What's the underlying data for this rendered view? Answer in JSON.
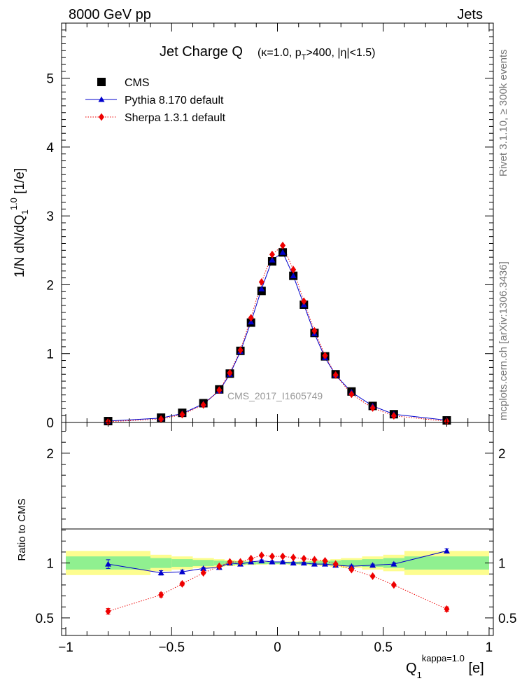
{
  "header": {
    "left": "8000 GeV pp",
    "right": "Jets"
  },
  "side_labels": {
    "rivet": "Rivet 3.1.10, ≥ 300k events",
    "mcplots": "mcplots.cern.ch [arXiv:1306.3436]"
  },
  "chart_data": [
    {
      "type": "scatter",
      "title": "Jet Charge Q",
      "title_detail": "(κ=1.0, p_T>400, |η|<1.5)",
      "watermark": "CMS_2017_I1605749",
      "ylabel": "1/N dN/dQ_1^1.0 [1/e]",
      "xlim": [
        -1.02,
        1.02
      ],
      "ylim": [
        0,
        5.8
      ],
      "y_ticks": [
        0,
        1,
        2,
        3,
        4,
        5
      ],
      "legend_placement": "top-left",
      "x": [
        -0.8,
        -0.55,
        -0.45,
        -0.35,
        -0.275,
        -0.225,
        -0.175,
        -0.125,
        -0.075,
        -0.025,
        0.025,
        0.075,
        0.125,
        0.175,
        0.225,
        0.275,
        0.35,
        0.45,
        0.55,
        0.8
      ],
      "series": [
        {
          "name": "CMS",
          "marker": "square",
          "color": "#000000",
          "values": [
            0.02,
            0.07,
            0.14,
            0.28,
            0.48,
            0.71,
            1.04,
            1.45,
            1.91,
            2.34,
            2.47,
            2.13,
            1.71,
            1.3,
            0.96,
            0.7,
            0.45,
            0.24,
            0.12,
            0.03
          ]
        },
        {
          "name": "Pythia 8.170 default",
          "marker": "triangle",
          "color": "#0000cc",
          "line": "solid",
          "values": [
            0.02,
            0.064,
            0.13,
            0.27,
            0.46,
            0.7,
            1.03,
            1.46,
            1.94,
            2.36,
            2.47,
            2.13,
            1.71,
            1.29,
            0.94,
            0.69,
            0.44,
            0.24,
            0.12,
            0.033
          ]
        },
        {
          "name": "Sherpa 1.3.1 default",
          "marker": "diamond",
          "color": "#ee0000",
          "line": "dotted",
          "values": [
            0.011,
            0.05,
            0.115,
            0.255,
            0.47,
            0.72,
            1.05,
            1.52,
            2.04,
            2.44,
            2.57,
            2.22,
            1.76,
            1.33,
            0.97,
            0.69,
            0.41,
            0.21,
            0.097,
            0.017
          ]
        }
      ]
    },
    {
      "type": "scatter",
      "ylabel": "Ratio to CMS",
      "xlabel": "Q_1^kappa=1.0 [e]",
      "xlim": [
        -1.02,
        1.02
      ],
      "ylim": [
        0.34,
        2.28
      ],
      "y_ticks": [
        0.5,
        1,
        2
      ],
      "x_ticks": [
        -1,
        -0.5,
        0,
        0.5,
        1
      ],
      "x_tick_labels": [
        "−1",
        "−0.5",
        "0",
        "0.5",
        "1"
      ],
      "x": [
        -0.8,
        -0.55,
        -0.45,
        -0.35,
        -0.275,
        -0.225,
        -0.175,
        -0.125,
        -0.075,
        -0.025,
        0.025,
        0.075,
        0.125,
        0.175,
        0.225,
        0.275,
        0.35,
        0.45,
        0.55,
        0.8
      ],
      "bands": {
        "edges": [
          -1.0,
          -0.6,
          -0.5,
          -0.4,
          -0.3,
          -0.25,
          -0.2,
          -0.15,
          -0.1,
          -0.05,
          0.0,
          0.05,
          0.1,
          0.15,
          0.2,
          0.25,
          0.3,
          0.4,
          0.5,
          0.6,
          1.0
        ],
        "inner": [
          0.06,
          0.045,
          0.035,
          0.028,
          0.022,
          0.018,
          0.015,
          0.012,
          0.01,
          0.009,
          0.009,
          0.01,
          0.012,
          0.015,
          0.018,
          0.022,
          0.028,
          0.035,
          0.045,
          0.06
        ],
        "outer": [
          0.11,
          0.075,
          0.06,
          0.045,
          0.035,
          0.028,
          0.022,
          0.018,
          0.015,
          0.013,
          0.013,
          0.015,
          0.018,
          0.022,
          0.028,
          0.035,
          0.045,
          0.06,
          0.075,
          0.11
        ],
        "inner_color": "#90f090",
        "outer_color": "#fdfd8f"
      },
      "series": [
        {
          "name": "Pythia 8.170 default",
          "marker": "triangle",
          "color": "#0000cc",
          "line": "solid",
          "values": [
            0.99,
            0.91,
            0.92,
            0.95,
            0.96,
            1.0,
            0.99,
            1.01,
            1.02,
            1.01,
            1.01,
            1.0,
            1.0,
            0.99,
            0.99,
            0.98,
            0.97,
            0.98,
            0.99,
            1.11
          ],
          "errors": [
            0.04,
            0.02,
            0.015,
            0.01,
            0.01,
            0.01,
            0.008,
            0.008,
            0.008,
            0.008,
            0.008,
            0.008,
            0.008,
            0.008,
            0.008,
            0.01,
            0.01,
            0.01,
            0.012,
            0.02
          ]
        },
        {
          "name": "Sherpa 1.3.1 default",
          "marker": "diamond",
          "color": "#ee0000",
          "line": "dotted",
          "values": [
            0.56,
            0.71,
            0.81,
            0.91,
            0.97,
            1.01,
            1.01,
            1.04,
            1.07,
            1.06,
            1.06,
            1.05,
            1.04,
            1.03,
            1.02,
            0.99,
            0.94,
            0.88,
            0.8,
            0.58
          ],
          "errors": [
            0.025,
            0.02,
            0.015,
            0.01,
            0.01,
            0.01,
            0.008,
            0.008,
            0.008,
            0.008,
            0.008,
            0.008,
            0.008,
            0.008,
            0.008,
            0.01,
            0.01,
            0.01,
            0.012,
            0.02
          ]
        }
      ]
    }
  ]
}
